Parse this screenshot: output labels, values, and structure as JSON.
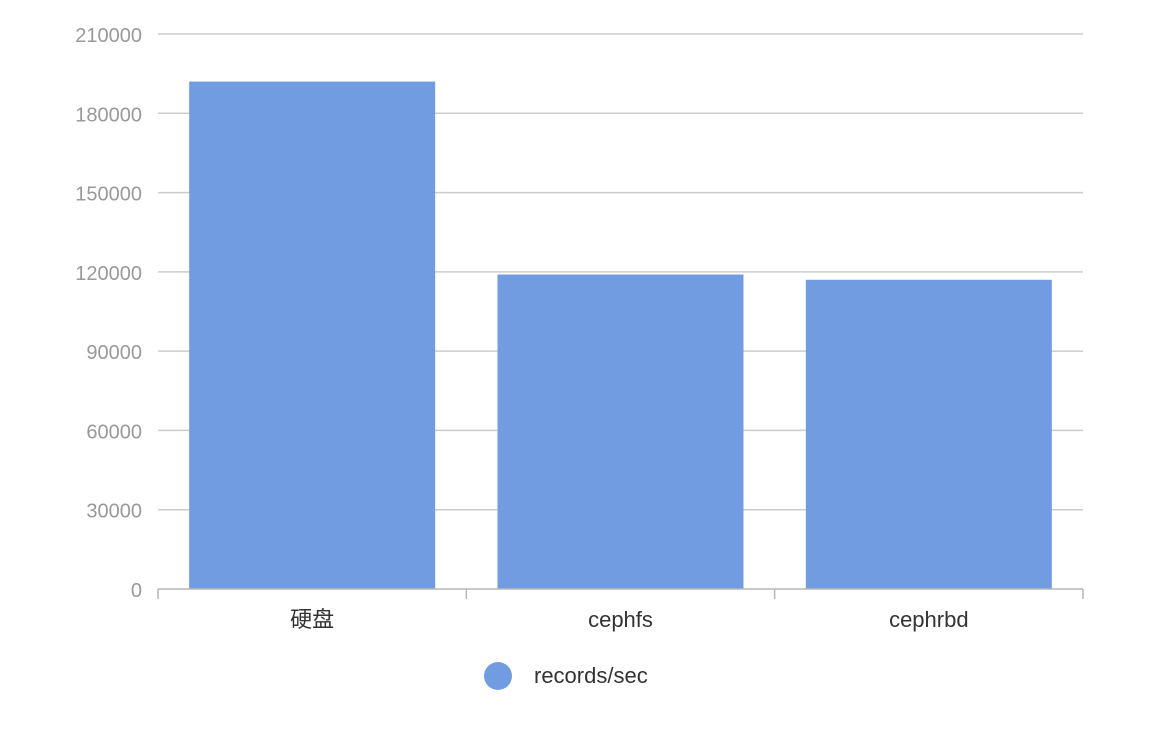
{
  "chart_data": {
    "type": "bar",
    "categories": [
      "硬盘",
      "cephfs",
      "cephrbd"
    ],
    "series": [
      {
        "name": "records/sec",
        "values": [
          192000,
          119000,
          117000
        ]
      }
    ],
    "ylim": [
      0,
      210000
    ],
    "yticks": [
      "0",
      "30000",
      "60000",
      "90000",
      "120000",
      "150000",
      "180000",
      "210000"
    ],
    "grid": true,
    "legend_position": "bottom-center"
  },
  "colors": {
    "bar": "#729ce2",
    "grid": "#cccccc",
    "axis": "#b7b7b7",
    "tick_text": "#999999",
    "category_text": "#333333"
  }
}
